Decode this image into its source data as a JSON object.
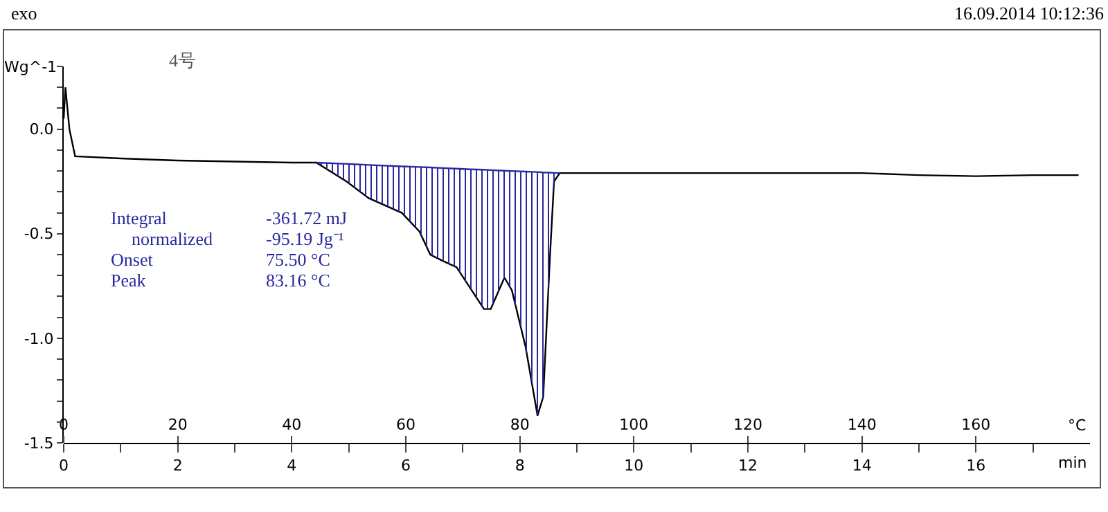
{
  "chart_data": {
    "type": "line",
    "ylabel": "Wg^-1",
    "xlabel": "°C",
    "x2label": "min",
    "annotations": [
      "exo",
      "16.09.2014 10:12:36",
      "4号",
      "Integral",
      "-361.72 mJ",
      "normalized",
      "-95.19 Jg⁻¹",
      "Onset",
      "75.50 °C",
      "Peak",
      "83.16 °C"
    ],
    "xlim": [
      0,
      180
    ],
    "xticks": [
      0,
      20,
      40,
      60,
      80,
      100,
      120,
      140,
      160
    ],
    "x2lim": [
      0,
      18
    ],
    "x2ticks": [
      0,
      {
        "value": 1,
        "label": null
      },
      2,
      {
        "value": 3,
        "label": null
      },
      4,
      {
        "value": 5,
        "label": null
      },
      6,
      {
        "value": 7,
        "label": null
      },
      8,
      {
        "value": 9,
        "label": null
      },
      10,
      {
        "value": 11,
        "label": null
      },
      12,
      {
        "value": 13,
        "label": null
      },
      14,
      {
        "value": 15,
        "label": null
      },
      16,
      {
        "value": 17,
        "label": null
      }
    ],
    "ylim": [
      -1.5,
      0.3
    ],
    "yticks": [
      {
        "value": -1.5,
        "label": "-1.5"
      },
      {
        "value": -1.4,
        "label": null
      },
      {
        "value": -1.3,
        "label": null
      },
      {
        "value": -1.2,
        "label": null
      },
      {
        "value": -1.1,
        "label": null
      },
      {
        "value": -1.0,
        "label": "-1.0"
      },
      {
        "value": -0.9,
        "label": null
      },
      {
        "value": -0.8,
        "label": null
      },
      {
        "value": -0.7,
        "label": null
      },
      {
        "value": -0.6,
        "label": null
      },
      {
        "value": -0.5,
        "label": "-0.5"
      },
      {
        "value": -0.4,
        "label": null
      },
      {
        "value": -0.3,
        "label": null
      },
      {
        "value": -0.2,
        "label": null
      },
      {
        "value": -0.1,
        "label": null
      },
      {
        "value": 0,
        "label": "0.0"
      },
      {
        "value": 0.1,
        "label": null
      },
      {
        "value": 0.2,
        "label": null
      },
      {
        "value": 0.3,
        "label": null
      }
    ],
    "grid": false,
    "series": [
      {
        "color": "#000000",
        "x": [
          0,
          0.3,
          1,
          2,
          10,
          20,
          30,
          40,
          44.3,
          49.6,
          53.5,
          59.3,
          62.4,
          64.3,
          66.5,
          68.9,
          71.3,
          73.7,
          74.9,
          77.3,
          78.6,
          81.0,
          83.1,
          84.1,
          85.3,
          86.0,
          87.0,
          100,
          120,
          140,
          150,
          160,
          170,
          178
        ],
        "values": [
          0.05,
          0.2,
          0.0,
          -0.13,
          -0.14,
          -0.15,
          -0.155,
          -0.16,
          -0.16,
          -0.25,
          -0.33,
          -0.4,
          -0.49,
          -0.6,
          -0.63,
          -0.66,
          -0.76,
          -0.86,
          -0.86,
          -0.71,
          -0.77,
          -1.04,
          -1.37,
          -1.28,
          -0.6,
          -0.25,
          -0.21,
          -0.21,
          -0.21,
          -0.21,
          -0.22,
          -0.225,
          -0.22,
          -0.22
        ]
      },
      {
        "color": "#2828a0",
        "x": [
          44.3,
          49.6,
          53.5,
          59.3,
          62.4,
          64.3,
          66.5,
          68.9,
          71.3,
          73.7,
          74.9,
          77.3,
          78.6,
          81.0,
          83.1,
          84.1,
          85.3,
          86.0,
          87.0
        ],
        "values": [
          -0.16,
          -0.166,
          -0.171,
          -0.178,
          -0.181,
          -0.183,
          -0.186,
          -0.189,
          -0.192,
          -0.194,
          -0.196,
          -0.199,
          -0.2,
          -0.203,
          -0.205,
          -0.207,
          -0.208,
          -0.209,
          -0.21
        ],
        "upper": [
          -0.16,
          -0.166,
          -0.171,
          -0.178,
          -0.181,
          -0.183,
          -0.186,
          -0.189,
          -0.192,
          -0.194,
          -0.196,
          -0.199,
          -0.2,
          -0.203,
          -0.205,
          -0.207,
          -0.208,
          -0.209,
          -0.21
        ],
        "lower": [
          -0.16,
          -0.25,
          -0.33,
          -0.4,
          -0.49,
          -0.6,
          -0.63,
          -0.66,
          -0.76,
          -0.86,
          -0.86,
          -0.71,
          -0.77,
          -1.04,
          -1.37,
          -1.28,
          -0.6,
          -0.25,
          -0.21
        ]
      }
    ]
  }
}
